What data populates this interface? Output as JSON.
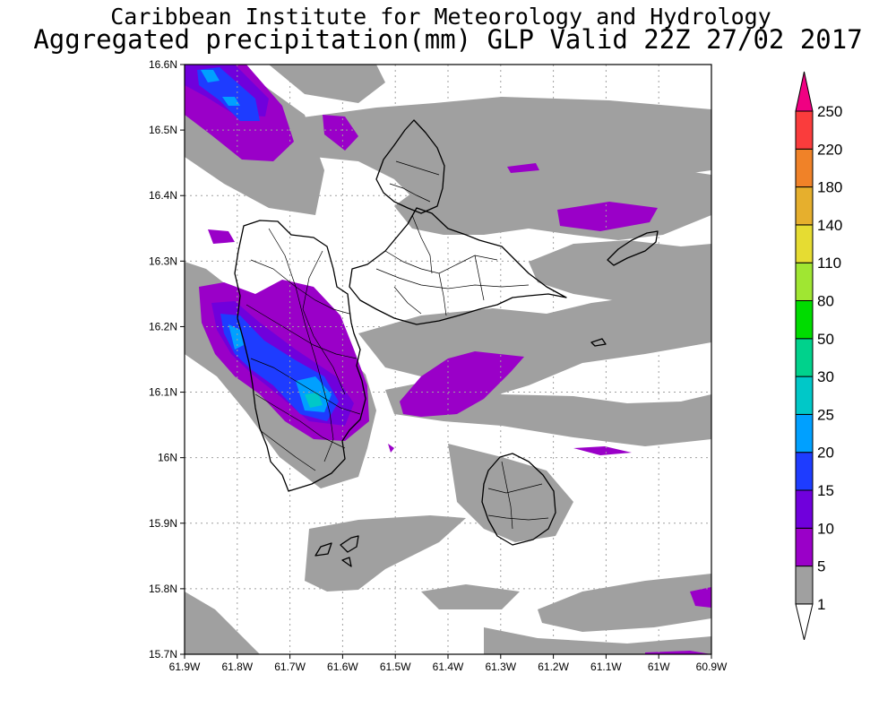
{
  "header": {
    "line1": "Caribbean Institute for Meteorology and Hydrology",
    "line2": "Aggregated precipitation(mm) GLP Valid 22Z 27/02 2017"
  },
  "axes": {
    "lat_ticks": [
      "16.6N",
      "16.5N",
      "16.4N",
      "16.3N",
      "16.2N",
      "16.1N",
      "16N",
      "15.9N",
      "15.8N",
      "15.7N"
    ],
    "lon_ticks": [
      "61.9W",
      "61.8W",
      "61.7W",
      "61.6W",
      "61.5W",
      "61.4W",
      "61.3W",
      "61.2W",
      "61.1W",
      "61W",
      "60.9W"
    ],
    "lat_range": [
      15.7,
      16.6
    ],
    "lon_range": [
      -61.9,
      -60.9
    ],
    "grid": true
  },
  "colorbar": {
    "levels": [
      "1",
      "5",
      "10",
      "15",
      "20",
      "25",
      "30",
      "50",
      "80",
      "110",
      "140",
      "180",
      "220",
      "250"
    ],
    "colors": [
      "#ffffff",
      "#a0a0a0",
      "#9a00c8",
      "#7000dc",
      "#1e3cff",
      "#00a0ff",
      "#00c8c8",
      "#00d28c",
      "#00dc00",
      "#a0e632",
      "#e6dc32",
      "#e6af2d",
      "#f08228",
      "#fa3c3c",
      "#f00082"
    ]
  }
}
